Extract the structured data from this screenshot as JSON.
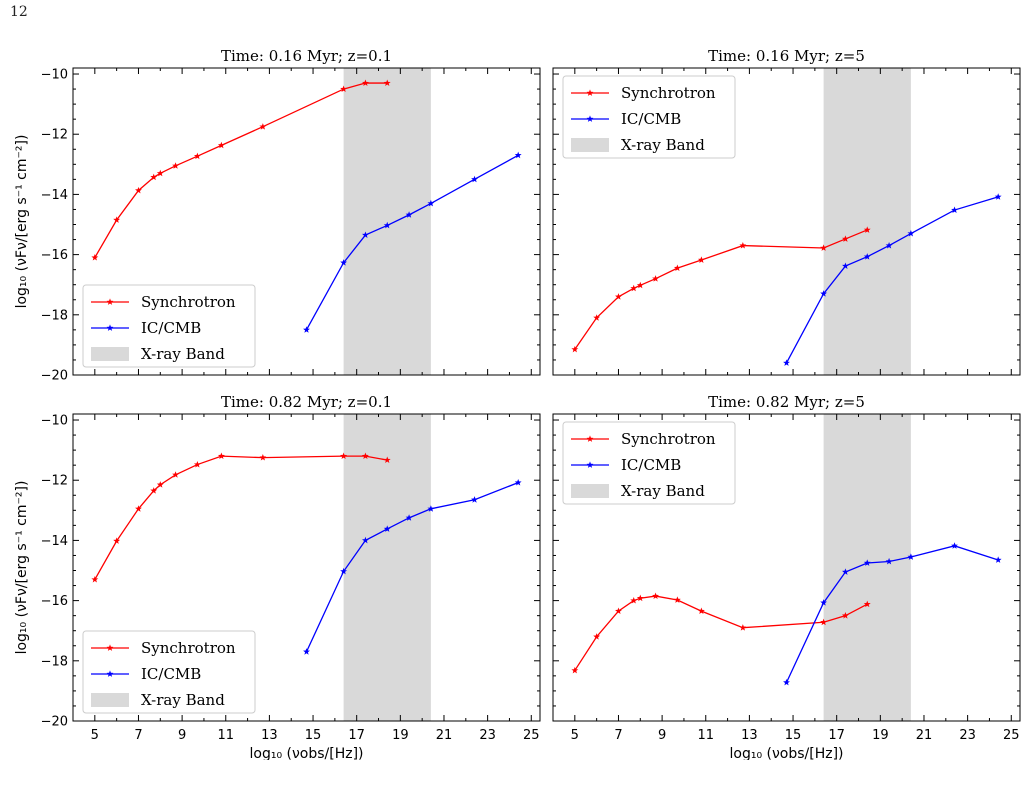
{
  "page": {
    "number": "12"
  },
  "chart_data": [
    {
      "type": "line",
      "title": "Time: 0.16 Myr; z=0.1",
      "ylabel": "log₁₀ (νFν/[erg s⁻¹ cm⁻²])",
      "xlabel": "",
      "xlim": [
        4,
        25.4
      ],
      "ylim": [
        -20,
        -9.8
      ],
      "xticks": [
        5,
        7,
        9,
        11,
        13,
        15,
        17,
        19,
        21,
        23,
        25
      ],
      "yticks": [
        -20,
        -18,
        -16,
        -14,
        -12,
        -10
      ],
      "show_xtick_labels": false,
      "legend": "lower-left",
      "band": {
        "name": "X-ray Band",
        "x": [
          16.4,
          20.4
        ],
        "color": "#d9d9d9"
      },
      "series": [
        {
          "name": "Synchrotron",
          "color": "#ff0000",
          "x": [
            5,
            6,
            7,
            7.7,
            8,
            8.7,
            9.7,
            10.8,
            12.7,
            16.4,
            17.4,
            18.4
          ],
          "y": [
            -16.1,
            -14.85,
            -13.87,
            -13.43,
            -13.3,
            -13.05,
            -12.73,
            -12.37,
            -11.75,
            -10.5,
            -10.3,
            -10.3
          ]
        },
        {
          "name": "IC/CMB",
          "color": "#0000ff",
          "x": [
            14.7,
            16.4,
            17.4,
            18.4,
            19.4,
            20.4,
            22.4,
            24.4
          ],
          "y": [
            -18.5,
            -16.27,
            -15.35,
            -15.03,
            -14.68,
            -14.3,
            -13.5,
            -12.7
          ]
        }
      ]
    },
    {
      "type": "line",
      "title": "Time: 0.16 Myr; z=5",
      "ylabel": "",
      "xlabel": "",
      "xlim": [
        4,
        25.4
      ],
      "ylim": [
        -20,
        -9.8
      ],
      "xticks": [
        5,
        7,
        9,
        11,
        13,
        15,
        17,
        19,
        21,
        23,
        25
      ],
      "yticks": [
        -20,
        -18,
        -16,
        -14,
        -12,
        -10
      ],
      "show_xtick_labels": false,
      "show_ytick_labels": false,
      "legend": "upper-left",
      "band": {
        "name": "X-ray Band",
        "x": [
          16.4,
          20.4
        ],
        "color": "#d9d9d9"
      },
      "series": [
        {
          "name": "Synchrotron",
          "color": "#ff0000",
          "x": [
            5,
            6,
            7,
            7.7,
            8,
            8.7,
            9.7,
            10.8,
            12.7,
            16.4,
            17.4,
            18.4
          ],
          "y": [
            -19.15,
            -18.1,
            -17.4,
            -17.12,
            -17.02,
            -16.8,
            -16.45,
            -16.18,
            -15.7,
            -15.78,
            -15.48,
            -15.18
          ]
        },
        {
          "name": "IC/CMB",
          "color": "#0000ff",
          "x": [
            14.7,
            16.4,
            17.4,
            18.4,
            19.4,
            20.4,
            22.4,
            24.4
          ],
          "y": [
            -19.6,
            -17.3,
            -16.38,
            -16.07,
            -15.7,
            -15.3,
            -14.52,
            -14.08
          ]
        }
      ]
    },
    {
      "type": "line",
      "title": "Time: 0.82 Myr; z=0.1",
      "ylabel": "log₁₀ (νFν/[erg s⁻¹ cm⁻²])",
      "xlabel": "log₁₀ (νobs/[Hz])",
      "xlim": [
        4,
        25.4
      ],
      "ylim": [
        -20,
        -9.8
      ],
      "xticks": [
        5,
        7,
        9,
        11,
        13,
        15,
        17,
        19,
        21,
        23,
        25
      ],
      "yticks": [
        -20,
        -18,
        -16,
        -14,
        -12,
        -10
      ],
      "show_xtick_labels": true,
      "legend": "lower-left",
      "band": {
        "name": "X-ray Band",
        "x": [
          16.4,
          20.4
        ],
        "color": "#d9d9d9"
      },
      "series": [
        {
          "name": "Synchrotron",
          "color": "#ff0000",
          "x": [
            5,
            6,
            7,
            7.7,
            8,
            8.7,
            9.7,
            10.8,
            12.7,
            16.4,
            17.4,
            18.4
          ],
          "y": [
            -15.3,
            -14.02,
            -12.95,
            -12.35,
            -12.15,
            -11.82,
            -11.48,
            -11.2,
            -11.25,
            -11.2,
            -11.2,
            -11.33
          ]
        },
        {
          "name": "IC/CMB",
          "color": "#0000ff",
          "x": [
            14.7,
            16.4,
            17.4,
            18.4,
            19.4,
            20.4,
            22.4,
            24.4
          ],
          "y": [
            -17.7,
            -15.03,
            -14.0,
            -13.62,
            -13.25,
            -12.95,
            -12.65,
            -12.08
          ]
        }
      ]
    },
    {
      "type": "line",
      "title": "Time: 0.82 Myr; z=5",
      "ylabel": "",
      "xlabel": "log₁₀ (νobs/[Hz])",
      "xlim": [
        4,
        25.4
      ],
      "ylim": [
        -20,
        -9.8
      ],
      "xticks": [
        5,
        7,
        9,
        11,
        13,
        15,
        17,
        19,
        21,
        23,
        25
      ],
      "yticks": [
        -20,
        -18,
        -16,
        -14,
        -12,
        -10
      ],
      "show_xtick_labels": true,
      "show_ytick_labels": false,
      "legend": "upper-left",
      "band": {
        "name": "X-ray Band",
        "x": [
          16.4,
          20.4
        ],
        "color": "#d9d9d9"
      },
      "series": [
        {
          "name": "Synchrotron",
          "color": "#ff0000",
          "x": [
            5,
            6,
            7,
            7.7,
            8,
            8.7,
            9.7,
            10.8,
            12.7,
            16.4,
            17.4,
            18.4
          ],
          "y": [
            -18.32,
            -17.2,
            -16.35,
            -16.0,
            -15.92,
            -15.85,
            -15.98,
            -16.35,
            -16.9,
            -16.72,
            -16.5,
            -16.12
          ]
        },
        {
          "name": "IC/CMB",
          "color": "#0000ff",
          "x": [
            14.7,
            16.4,
            17.4,
            18.4,
            19.4,
            20.4,
            22.4,
            24.4
          ],
          "y": [
            -18.72,
            -16.07,
            -15.05,
            -14.75,
            -14.7,
            -14.55,
            -14.18,
            -14.65
          ]
        }
      ]
    }
  ]
}
